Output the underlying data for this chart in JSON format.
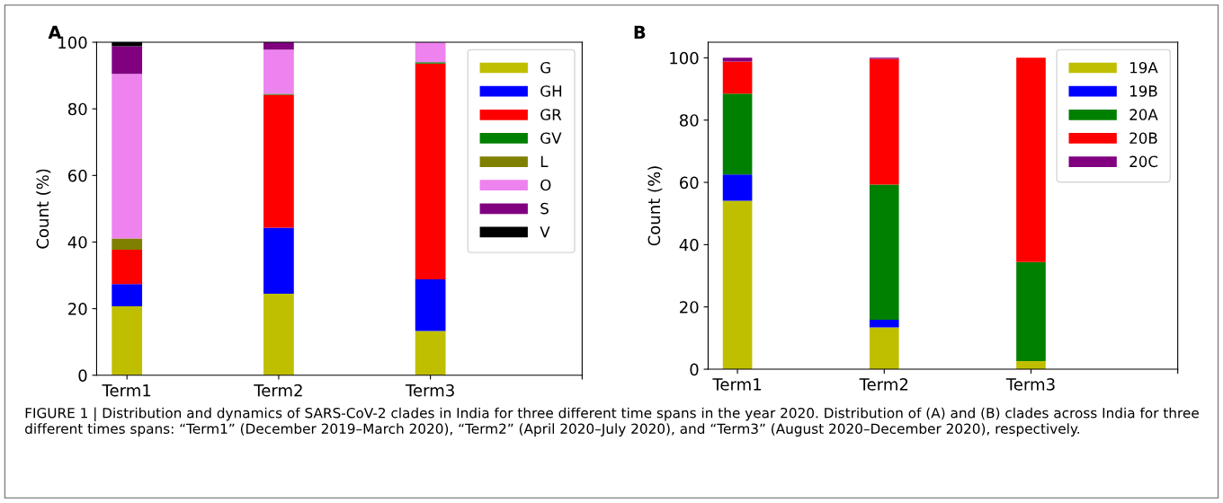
{
  "chart_data": [
    {
      "type": "bar",
      "stacked": true,
      "ylabel": "Count (%)",
      "categories": [
        "Term1",
        "Term2",
        "Term3",
        null
      ],
      "ylim": [
        0,
        100
      ],
      "yticks": [
        0,
        20,
        40,
        60,
        80,
        100
      ],
      "legend": "top right",
      "grid": false,
      "annotations": [
        "A",
        "FIGURE 1 | Distribution and dynamics of SARS-CoV-2 clades in India for three different time spans in the year 2020. Distribution of (A) and (B) clades across India for three different times spans: “Term1” (December 2019–March 2020), “Term2” (April 2020–July 2020), and “Term3” (August 2020–December 2020), respectively."
      ],
      "series": [
        {
          "name": "G",
          "color": "#bfbf00",
          "values": [
            20.7,
            24.5,
            13.3,
            null
          ]
        },
        {
          "name": "GH",
          "color": "#0000ff",
          "values": [
            6.7,
            19.8,
            15.5,
            null
          ]
        },
        {
          "name": "GR",
          "color": "#ff0000",
          "values": [
            10.3,
            39.9,
            64.8,
            null
          ]
        },
        {
          "name": "GV",
          "color": "#008000",
          "values": [
            0,
            0.3,
            0.4,
            null
          ]
        },
        {
          "name": "L",
          "color": "#808000",
          "values": [
            3.4,
            0,
            0,
            null
          ]
        },
        {
          "name": "O",
          "color": "#ee82ee",
          "values": [
            49.4,
            13.3,
            6.0,
            null
          ]
        },
        {
          "name": "S",
          "color": "#800080",
          "values": [
            8.3,
            2.2,
            0,
            null
          ]
        },
        {
          "name": "V",
          "color": "#000000",
          "values": [
            1.2,
            0,
            0,
            null
          ]
        }
      ]
    },
    {
      "type": "bar",
      "stacked": true,
      "ylabel": "Count (%)",
      "categories": [
        "Term1",
        "Term2",
        "Term3",
        null
      ],
      "ylim": [
        0,
        105
      ],
      "yticks": [
        0,
        20,
        40,
        60,
        80,
        100
      ],
      "legend": "top right",
      "grid": false,
      "annotations": [
        "B"
      ],
      "series": [
        {
          "name": "19A",
          "color": "#bfbf00",
          "values": [
            54.1,
            13.4,
            2.6,
            null
          ]
        },
        {
          "name": "19B",
          "color": "#0000ff",
          "values": [
            8.4,
            2.5,
            0,
            null
          ]
        },
        {
          "name": "20A",
          "color": "#008000",
          "values": [
            26.0,
            43.4,
            31.8,
            null
          ]
        },
        {
          "name": "20B",
          "color": "#ff0000",
          "values": [
            10.3,
            40.4,
            65.6,
            null
          ]
        },
        {
          "name": "20C",
          "color": "#800080",
          "values": [
            1.2,
            0.3,
            0,
            null
          ]
        }
      ]
    }
  ]
}
